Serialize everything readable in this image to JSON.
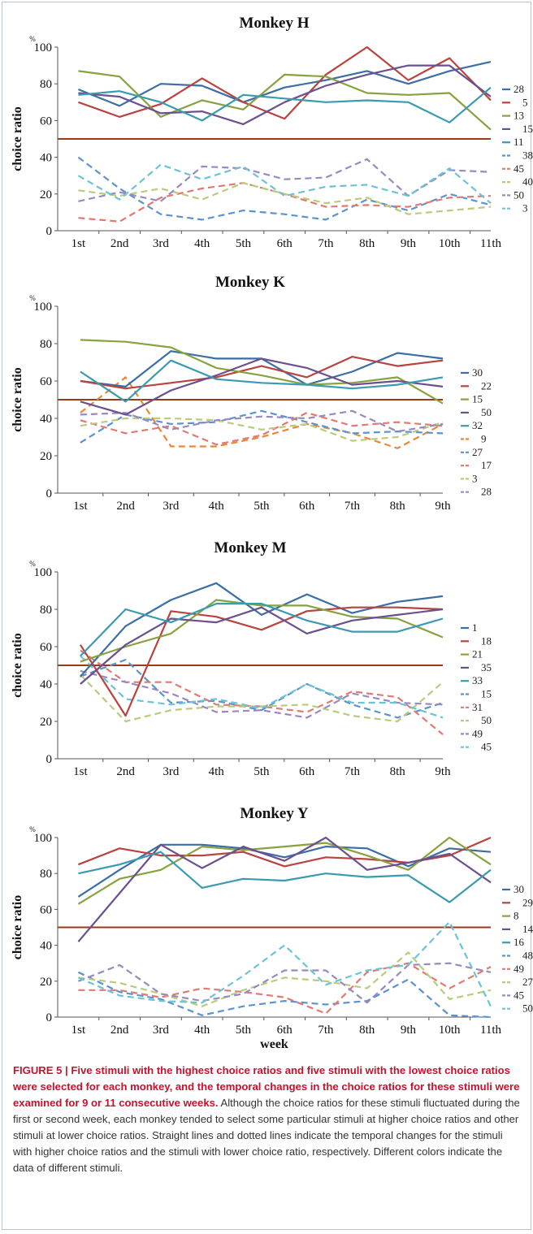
{
  "colors": {
    "blue": "#3a6ea5",
    "red": "#b8433f",
    "green": "#87a23e",
    "purple": "#6b4f8f",
    "teal": "#3a9bb0",
    "light_blue": "#5b93cf",
    "light_red": "#e07a72",
    "light_green": "#b8cc7c",
    "light_purple": "#9a88c0",
    "light_teal": "#6cc3d5",
    "orange": "#e8883a",
    "threshold": "#9a3a18"
  },
  "caption": {
    "title": "FIGURE 5 | Five stimuli with the highest choice ratios and five stimuli with the lowest choice ratios were selected for each monkey, and the temporal changes in the choice ratios for these stimuli were examined for 9 or 11 consecutive weeks.",
    "body": " Although the choice ratios for these stimuli fluctuated during the first or second week, each monkey tended to select some particular stimuli at higher choice ratios and other stimuli at lower choice ratios. Straight lines and dotted lines indicate the temporal changes for the stimuli with higher choice ratios and the stimuli with lower choice ratio, respectively. Different colors indicate the data of different stimuli."
  },
  "chart_data": [
    {
      "type": "line",
      "title": "Monkey H",
      "ylabel": "choice ratio",
      "yunit": "%",
      "xlabel": "",
      "ylim": [
        0,
        100
      ],
      "yticks": [
        0,
        20,
        40,
        60,
        80,
        100
      ],
      "reference_line": 50,
      "categories": [
        "1st",
        "2nd",
        "3rd",
        "4th",
        "5th",
        "6th",
        "7th",
        "8th",
        "9th",
        "10th",
        "11th"
      ],
      "series": [
        {
          "name": "28",
          "style": "solid",
          "color": "#3a6ea5",
          "values": [
            77,
            68,
            80,
            79,
            70,
            78,
            82,
            87,
            80,
            87,
            92
          ]
        },
        {
          "name": "5",
          "style": "solid",
          "color": "#b8433f",
          "values": [
            70,
            62,
            69,
            83,
            70,
            61,
            85,
            100,
            82,
            94,
            71
          ]
        },
        {
          "name": "13",
          "style": "solid",
          "color": "#87a23e",
          "values": [
            87,
            84,
            62,
            71,
            66,
            85,
            84,
            75,
            74,
            75,
            55
          ]
        },
        {
          "name": "15",
          "style": "solid",
          "color": "#6b4f8f",
          "values": [
            75,
            73,
            64,
            65,
            58,
            70,
            79,
            85,
            90,
            90,
            73
          ]
        },
        {
          "name": "11",
          "style": "solid",
          "color": "#3a9bb0",
          "values": [
            74,
            76,
            70,
            60,
            74,
            72,
            70,
            71,
            70,
            59,
            78
          ]
        },
        {
          "name": "38",
          "style": "dashed",
          "color": "#5b93cf",
          "values": [
            40,
            23,
            9,
            6,
            11,
            9,
            6,
            17,
            11,
            20,
            14
          ]
        },
        {
          "name": "45",
          "style": "dashed",
          "color": "#e07a72",
          "values": [
            7,
            5,
            18,
            23,
            26,
            20,
            13,
            14,
            13,
            18,
            19
          ]
        },
        {
          "name": "40",
          "style": "dashed",
          "color": "#b8cc7c",
          "values": [
            22,
            19,
            23,
            17,
            26,
            20,
            15,
            18,
            9,
            11,
            13
          ]
        },
        {
          "name": "50",
          "style": "dashed",
          "color": "#9a88c0",
          "values": [
            16,
            21,
            16,
            35,
            34,
            28,
            29,
            39,
            19,
            33,
            32
          ]
        },
        {
          "name": "3",
          "style": "dashed",
          "color": "#6cc3d5",
          "values": [
            30,
            17,
            36,
            28,
            35,
            19,
            24,
            25,
            19,
            34,
            15
          ]
        }
      ]
    },
    {
      "type": "line",
      "title": "Monkey K",
      "ylabel": "choice ratio",
      "yunit": "%",
      "xlabel": "",
      "ylim": [
        0,
        100
      ],
      "yticks": [
        0,
        20,
        40,
        60,
        80,
        100
      ],
      "reference_line": 50,
      "categories": [
        "1st",
        "2nd",
        "3rd",
        "4th",
        "5th",
        "6th",
        "7th",
        "8th",
        "9th"
      ],
      "series": [
        {
          "name": "30",
          "style": "solid",
          "color": "#3a6ea5",
          "values": [
            60,
            57,
            76,
            72,
            72,
            58,
            65,
            75,
            72
          ]
        },
        {
          "name": "22",
          "style": "solid",
          "color": "#b8433f",
          "values": [
            60,
            56,
            59,
            62,
            68,
            62,
            73,
            68,
            71
          ]
        },
        {
          "name": "15",
          "style": "solid",
          "color": "#87a23e",
          "values": [
            82,
            81,
            78,
            67,
            63,
            58,
            59,
            62,
            48
          ]
        },
        {
          "name": "50",
          "style": "solid",
          "color": "#6b4f8f",
          "values": [
            49,
            42,
            55,
            63,
            72,
            67,
            58,
            60,
            57
          ]
        },
        {
          "name": "32",
          "style": "solid",
          "color": "#3a9bb0",
          "values": [
            65,
            49,
            71,
            61,
            59,
            58,
            56,
            58,
            62
          ]
        },
        {
          "name": "9",
          "style": "dashed",
          "color": "#e8883a",
          "values": [
            43,
            62,
            25,
            25,
            30,
            37,
            32,
            24,
            37
          ]
        },
        {
          "name": "27",
          "style": "dashed",
          "color": "#5b93cf",
          "values": [
            27,
            42,
            37,
            38,
            44,
            38,
            32,
            33,
            32
          ]
        },
        {
          "name": "17",
          "style": "dashed",
          "color": "#e07a72",
          "values": [
            39,
            32,
            36,
            26,
            31,
            43,
            36,
            38,
            36
          ]
        },
        {
          "name": "3",
          "style": "dashed",
          "color": "#b8cc7c",
          "values": [
            36,
            40,
            40,
            39,
            34,
            37,
            28,
            30,
            38
          ]
        },
        {
          "name": "28",
          "style": "dashed",
          "color": "#9a88c0",
          "values": [
            42,
            43,
            34,
            39,
            41,
            40,
            44,
            33,
            37
          ]
        }
      ]
    },
    {
      "type": "line",
      "title": "Monkey M",
      "ylabel": "choice ratio",
      "yunit": "%",
      "xlabel": "",
      "ylim": [
        0,
        100
      ],
      "yticks": [
        0,
        20,
        40,
        60,
        80,
        100
      ],
      "reference_line": 50,
      "categories": [
        "1st",
        "2nd",
        "3rd",
        "4th",
        "5th",
        "6th",
        "7th",
        "8th",
        "9th"
      ],
      "series": [
        {
          "name": "1",
          "style": "solid",
          "color": "#3a6ea5",
          "values": [
            44,
            71,
            85,
            94,
            77,
            88,
            78,
            84,
            87
          ]
        },
        {
          "name": "18",
          "style": "solid",
          "color": "#b8433f",
          "values": [
            61,
            23,
            79,
            76,
            69,
            79,
            81,
            81,
            80
          ]
        },
        {
          "name": "21",
          "style": "solid",
          "color": "#87a23e",
          "values": [
            52,
            60,
            67,
            85,
            82,
            82,
            76,
            75,
            65
          ]
        },
        {
          "name": "35",
          "style": "solid",
          "color": "#6b4f8f",
          "values": [
            40,
            61,
            75,
            73,
            81,
            67,
            74,
            77,
            80
          ]
        },
        {
          "name": "33",
          "style": "solid",
          "color": "#3a9bb0",
          "values": [
            55,
            80,
            73,
            83,
            83,
            74,
            68,
            68,
            75
          ]
        },
        {
          "name": "15",
          "style": "dashed",
          "color": "#5b93cf",
          "values": [
            44,
            53,
            30,
            31,
            26,
            40,
            29,
            22,
            30
          ]
        },
        {
          "name": "31",
          "style": "dashed",
          "color": "#e07a72",
          "values": [
            58,
            41,
            41,
            29,
            28,
            25,
            36,
            33,
            13
          ]
        },
        {
          "name": "50",
          "style": "dashed",
          "color": "#b8cc7c",
          "values": [
            45,
            20,
            26,
            28,
            28,
            29,
            23,
            20,
            41
          ]
        },
        {
          "name": "49",
          "style": "dashed",
          "color": "#9a88c0",
          "values": [
            47,
            41,
            35,
            25,
            26,
            22,
            35,
            30,
            29
          ]
        },
        {
          "name": "45",
          "style": "dashed",
          "color": "#6cc3d5",
          "values": [
            55,
            32,
            29,
            32,
            27,
            40,
            30,
            30,
            22
          ]
        }
      ]
    },
    {
      "type": "line",
      "title": "Monkey Y",
      "ylabel": "choice ratio",
      "yunit": "%",
      "xlabel": "week",
      "ylim": [
        0,
        100
      ],
      "yticks": [
        0,
        20,
        40,
        60,
        80,
        100
      ],
      "reference_line": 50,
      "categories": [
        "1st",
        "2nd",
        "3rd",
        "4th",
        "5th",
        "6th",
        "7th",
        "8th",
        "9th",
        "10th",
        "11th"
      ],
      "series": [
        {
          "name": "30",
          "style": "solid",
          "color": "#3a6ea5",
          "values": [
            67,
            82,
            96,
            96,
            94,
            89,
            95,
            94,
            84,
            94,
            92
          ]
        },
        {
          "name": "29",
          "style": "solid",
          "color": "#b8433f",
          "values": [
            85,
            94,
            90,
            90,
            92,
            84,
            89,
            88,
            86,
            90,
            100
          ]
        },
        {
          "name": "8",
          "style": "solid",
          "color": "#87a23e",
          "values": [
            63,
            77,
            82,
            95,
            93,
            95,
            97,
            90,
            82,
            100,
            85
          ]
        },
        {
          "name": "14",
          "style": "solid",
          "color": "#6b4f8f",
          "values": [
            42,
            69,
            96,
            83,
            95,
            87,
            100,
            82,
            86,
            91,
            75
          ]
        },
        {
          "name": "16",
          "style": "solid",
          "color": "#3a9bb0",
          "values": [
            80,
            85,
            92,
            72,
            77,
            76,
            80,
            78,
            79,
            64,
            82
          ]
        },
        {
          "name": "48",
          "style": "dashed",
          "color": "#5b93cf",
          "values": [
            25,
            14,
            10,
            1,
            6,
            9,
            7,
            9,
            21,
            1,
            0
          ]
        },
        {
          "name": "49",
          "style": "dashed",
          "color": "#e07a72",
          "values": [
            15,
            15,
            11,
            16,
            14,
            11,
            2,
            25,
            30,
            16,
            28
          ]
        },
        {
          "name": "27",
          "style": "dashed",
          "color": "#b8cc7c",
          "values": [
            22,
            19,
            13,
            6,
            15,
            22,
            20,
            16,
            36,
            10,
            15
          ]
        },
        {
          "name": "45",
          "style": "dashed",
          "color": "#9a88c0",
          "values": [
            20,
            29,
            13,
            9,
            13,
            26,
            26,
            8,
            29,
            30,
            25
          ]
        },
        {
          "name": "50",
          "style": "dashed",
          "color": "#6cc3d5",
          "values": [
            22,
            12,
            9,
            8,
            23,
            40,
            18,
            26,
            29,
            53,
            6
          ]
        }
      ]
    }
  ]
}
